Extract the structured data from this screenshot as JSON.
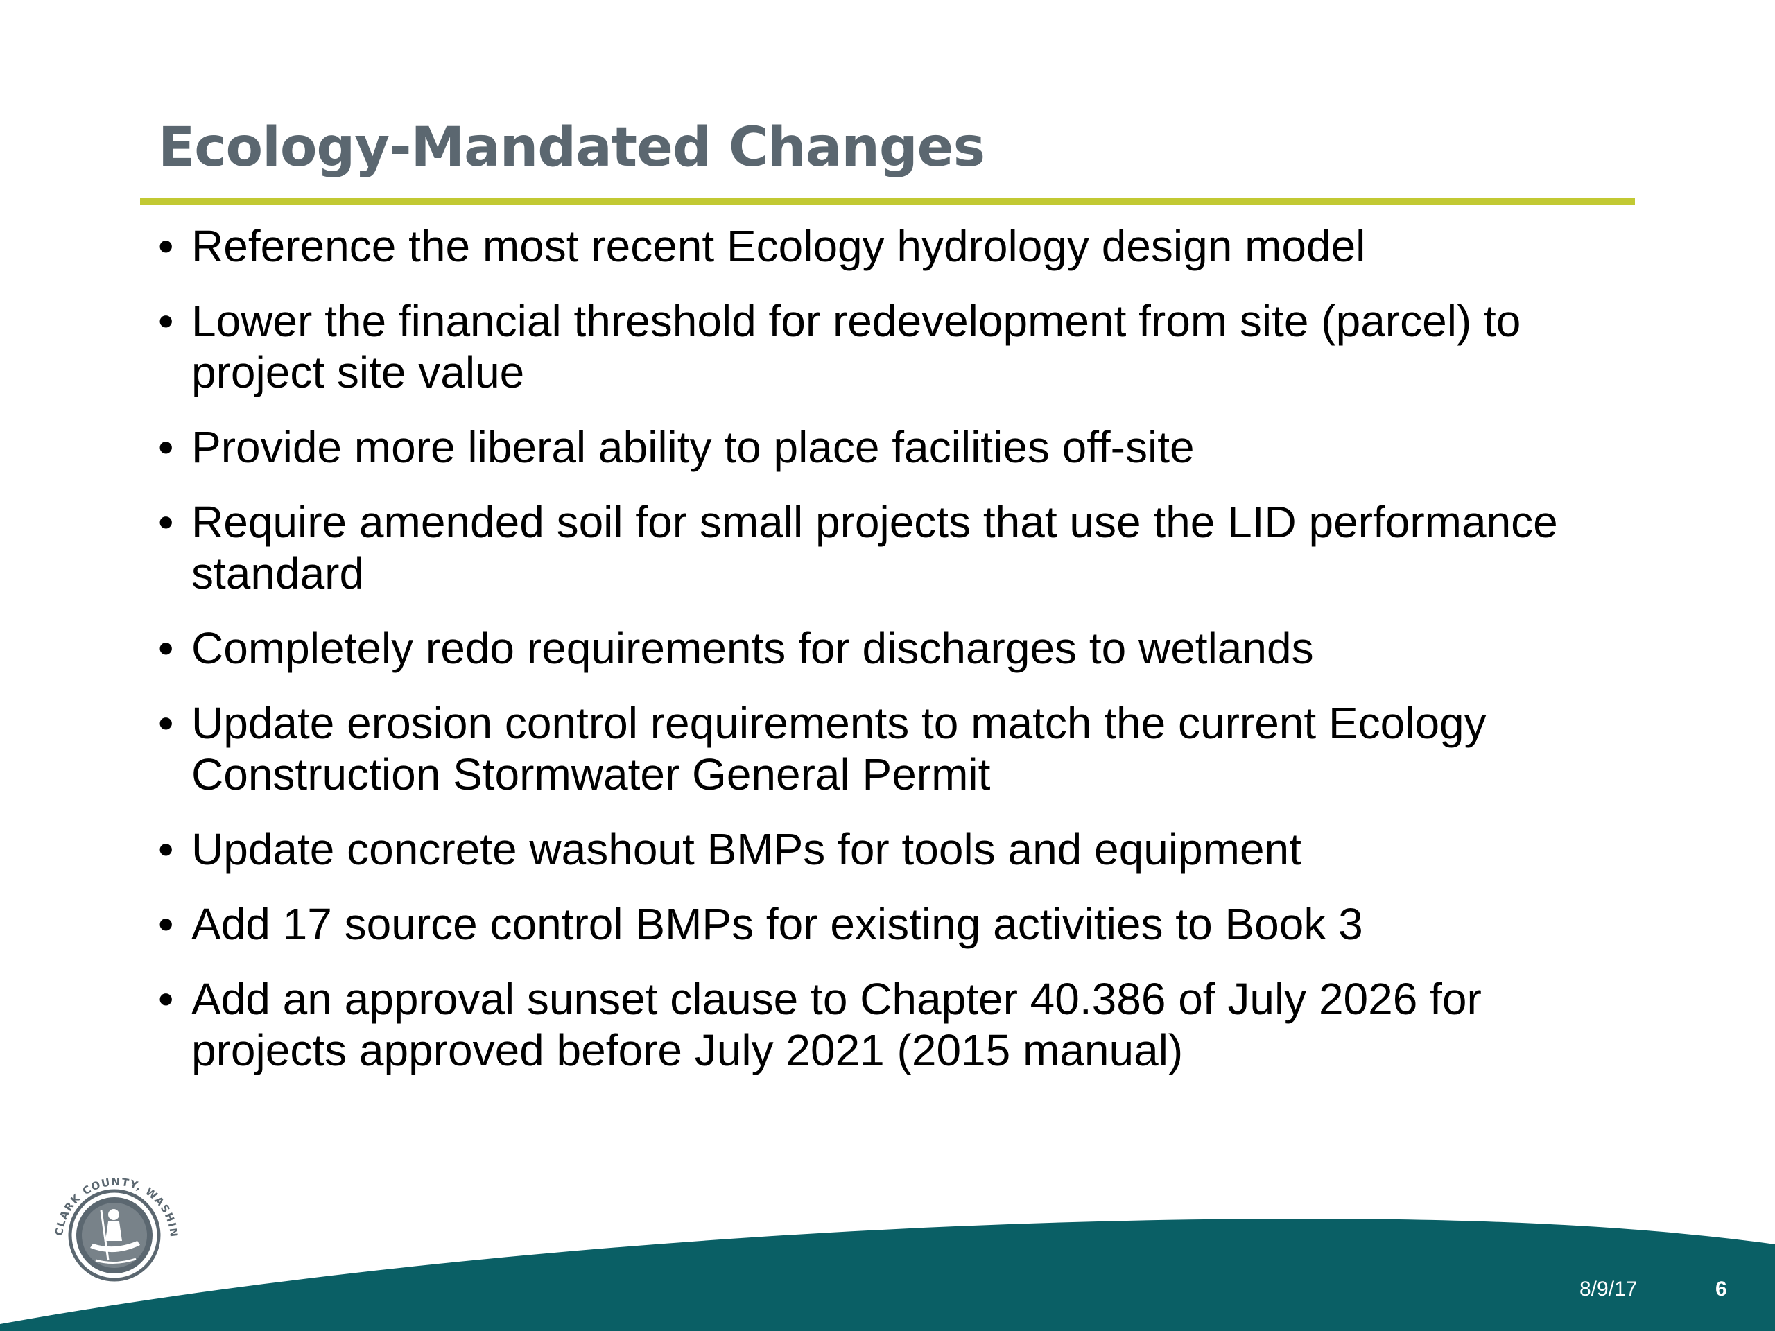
{
  "slide": {
    "title": "Ecology-Mandated Changes",
    "bullets": [
      "Reference the most recent Ecology hydrology design model",
      "Lower the financial threshold for redevelopment from site (parcel) to project site value",
      "Provide more liberal ability to place facilities off-site",
      "Require amended soil for small projects that use the LID performance standard",
      "Completely redo requirements for discharges to wetlands",
      "Update erosion control requirements to match the current Ecology Construction Stormwater General Permit",
      "Update concrete washout BMPs for tools and equipment",
      "Add 17 source control BMPs for existing activities to Book 3",
      "Add an approval sunset clause to Chapter 40.386 of July 2026 for projects approved before July 2021 (2015 manual)"
    ],
    "bullet_glyph": "•"
  },
  "footer": {
    "date": "8/9/17",
    "page_number": "6",
    "logo_text": "CLARK COUNTY, WASHINGTON"
  },
  "colors": {
    "title": "#5b6770",
    "title_rule": "#c2c933",
    "footer_wave": "#0a5f65",
    "seal": "#5b6770"
  }
}
